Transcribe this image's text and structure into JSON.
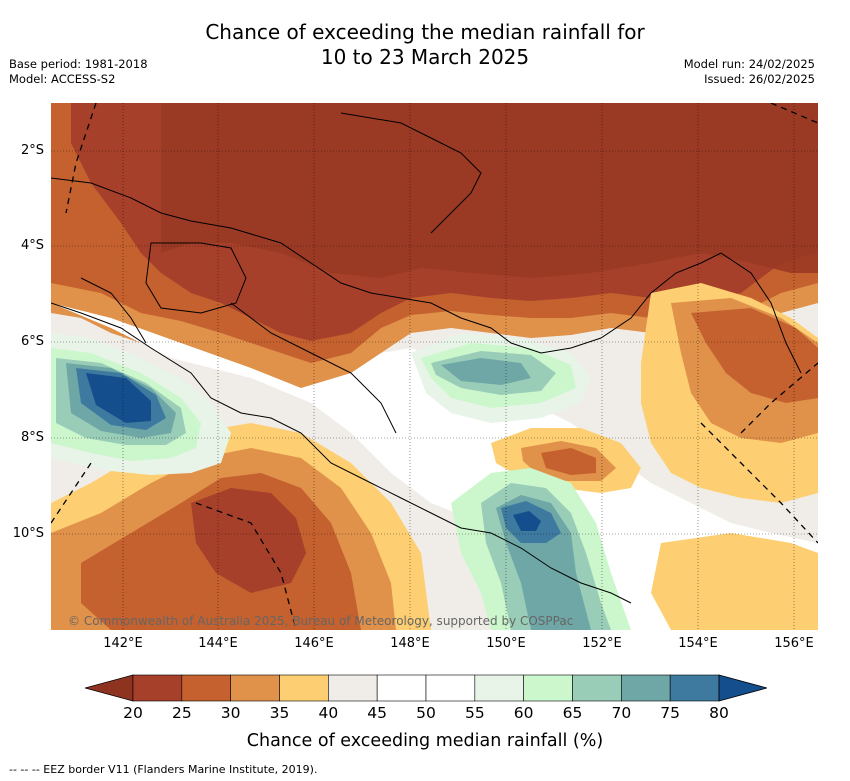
{
  "title_line1": "Chance of exceeding the median rainfall for",
  "title_line2": "10 to 23 March 2025",
  "meta_left": {
    "base_period": "Base period: 1981-2018",
    "model": "Model: ACCESS-S2"
  },
  "meta_right": {
    "model_run": "Model run: 24/02/2025",
    "issued": "Issued: 26/02/2025"
  },
  "map": {
    "lat_labels": [
      "2°S",
      "4°S",
      "6°S",
      "8°S",
      "10°S"
    ],
    "lon_labels": [
      "142°E",
      "144°E",
      "146°E",
      "148°E",
      "150°E",
      "152°E",
      "154°E",
      "156°E"
    ],
    "copyright": "© Commonwealth of Australia 2025, Bureau of Meteorology, supported by COSPPac"
  },
  "colorbar": {
    "ticks": [
      "20",
      "25",
      "30",
      "35",
      "40",
      "45",
      "50",
      "55",
      "60",
      "65",
      "70",
      "75",
      "80"
    ],
    "colors": [
      "#a7402a",
      "#c4612f",
      "#e0914a",
      "#fdcf72",
      "#f0ede8",
      "#ffffff",
      "#ffffff",
      "#e8f4e8",
      "#ccf7cc",
      "#99cdb8",
      "#6ea7a6",
      "#3e7aa0"
    ],
    "under_color": "#8f3321",
    "over_color": "#154e8c",
    "title": "Chance of exceeding median rainfall (%)"
  },
  "footnote": "-- -- -- EEZ border V11 (Flanders Marine Institute, 2019)."
}
